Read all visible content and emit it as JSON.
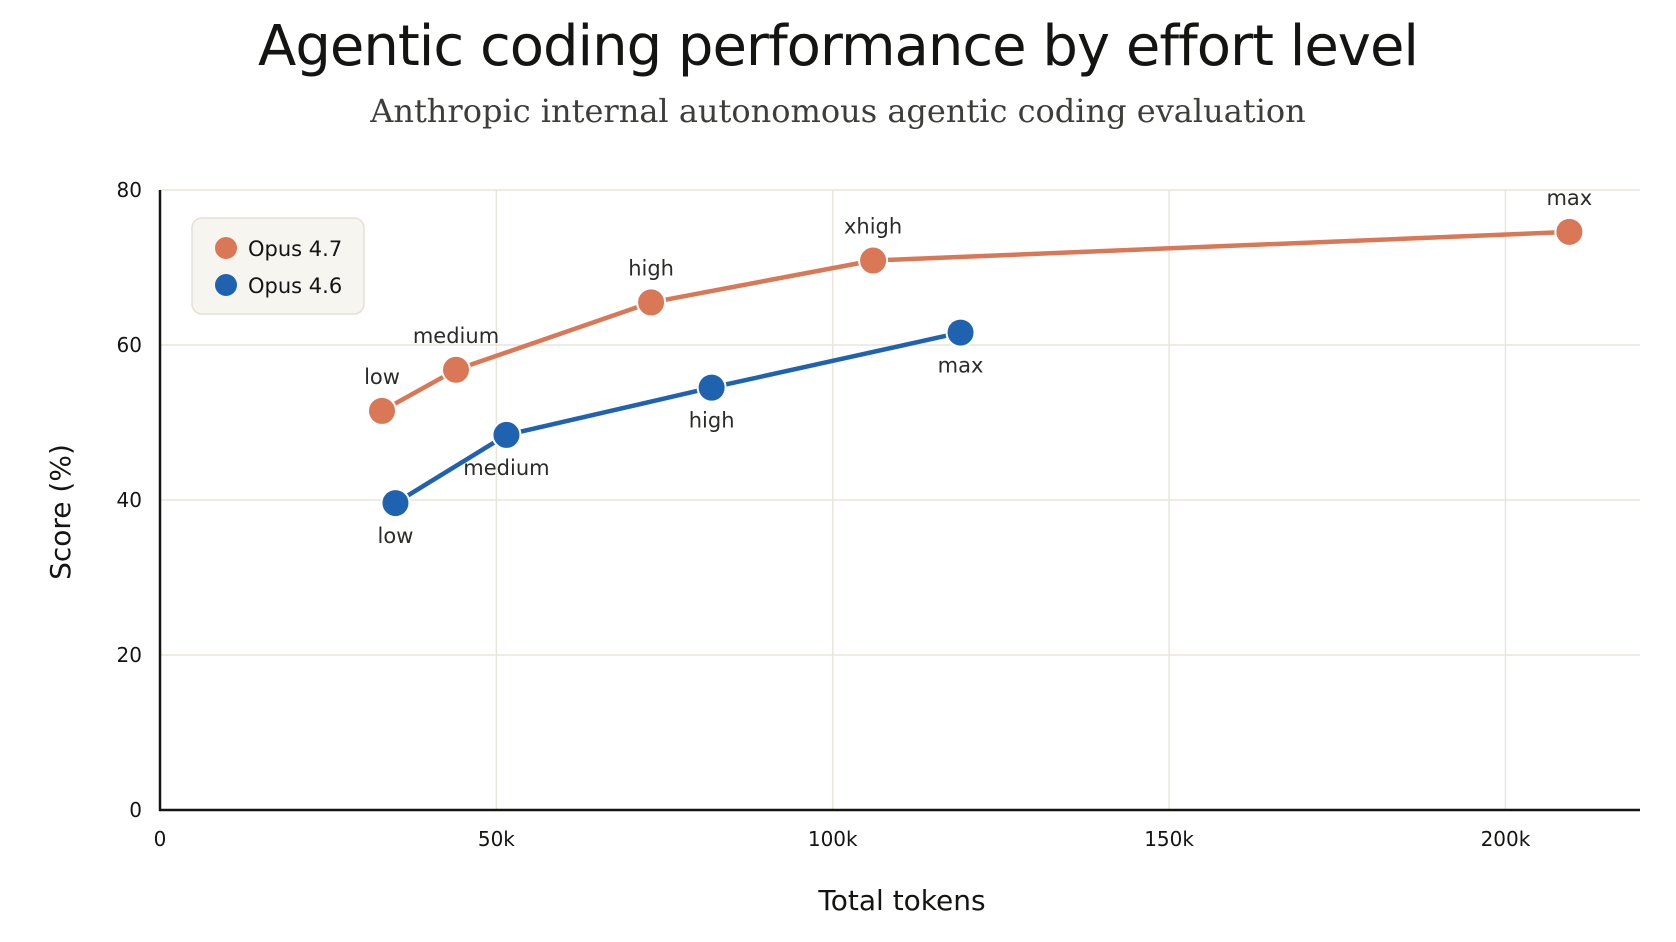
{
  "chart_data": {
    "type": "line",
    "title": "Agentic coding performance by effort level",
    "subtitle": "Anthropic internal autonomous agentic coding evaluation",
    "xlabel": "Total tokens",
    "ylabel": "Score (%)",
    "xlim": [
      0,
      220000
    ],
    "ylim": [
      0,
      80
    ],
    "x_ticks": [
      {
        "value": 0,
        "label": "0"
      },
      {
        "value": 50000,
        "label": "50k"
      },
      {
        "value": 100000,
        "label": "100k"
      },
      {
        "value": 150000,
        "label": "150k"
      },
      {
        "value": 200000,
        "label": "200k"
      }
    ],
    "y_ticks": [
      {
        "value": 0,
        "label": "0"
      },
      {
        "value": 20,
        "label": "20"
      },
      {
        "value": 40,
        "label": "40"
      },
      {
        "value": 60,
        "label": "60"
      },
      {
        "value": 80,
        "label": "80"
      }
    ],
    "grid": true,
    "legend_position": "top-left",
    "series": [
      {
        "name": "Opus 4.7",
        "color": "#d97757",
        "label_side": "above",
        "points": [
          {
            "x": 33000,
            "y": 51.5,
            "label": "low"
          },
          {
            "x": 44000,
            "y": 56.8,
            "label": "medium"
          },
          {
            "x": 73000,
            "y": 65.5,
            "label": "high"
          },
          {
            "x": 106000,
            "y": 70.9,
            "label": "xhigh"
          },
          {
            "x": 209500,
            "y": 74.6,
            "label": "max"
          }
        ]
      },
      {
        "name": "Opus 4.6",
        "color": "#1f63b0",
        "label_side": "below",
        "points": [
          {
            "x": 35000,
            "y": 39.6,
            "label": "low"
          },
          {
            "x": 51500,
            "y": 48.4,
            "label": "medium"
          },
          {
            "x": 82000,
            "y": 54.5,
            "label": "high"
          },
          {
            "x": 119000,
            "y": 61.6,
            "label": "max"
          }
        ]
      }
    ]
  }
}
